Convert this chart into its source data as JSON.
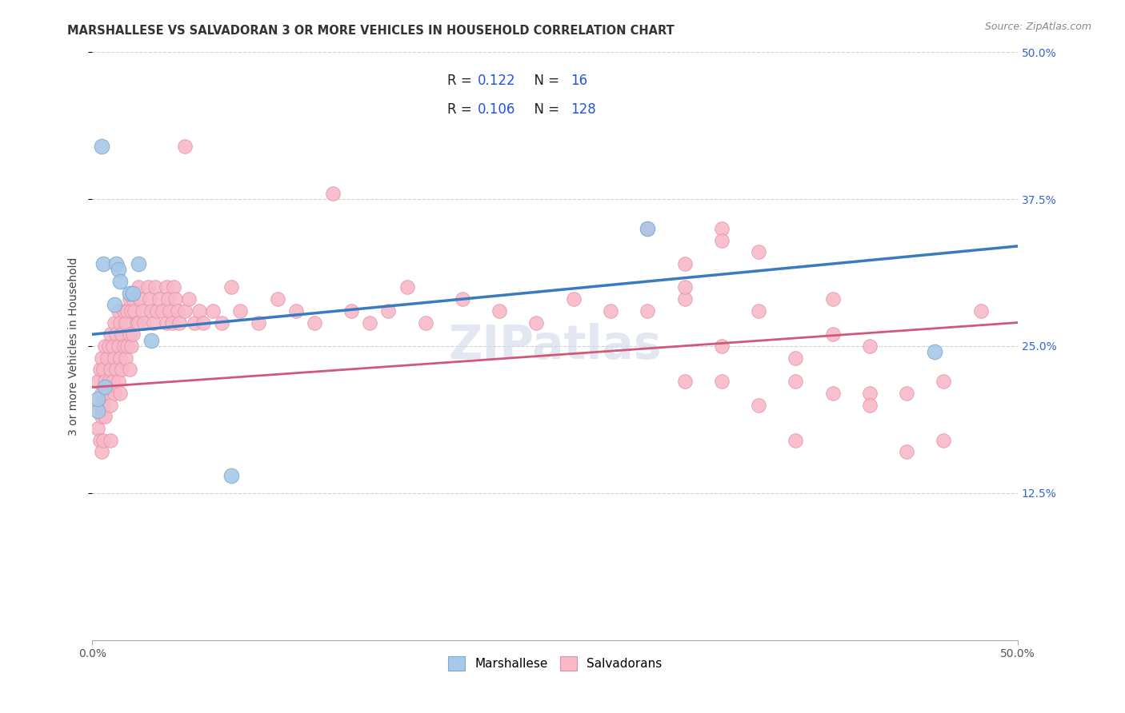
{
  "title": "MARSHALLESE VS SALVADORAN 3 OR MORE VEHICLES IN HOUSEHOLD CORRELATION CHART",
  "source": "Source: ZipAtlas.com",
  "ylabel": "3 or more Vehicles in Household",
  "xmin": 0.0,
  "xmax": 0.5,
  "ymin": 0.0,
  "ymax": 0.5,
  "marshallese_color": "#a8c8e8",
  "marshallese_edge": "#7aaacc",
  "salvadoran_color": "#f8b8c8",
  "salvadoran_edge": "#e090a8",
  "trend_marshallese_color": "#3a7abf",
  "trend_salvadoran_color": "#d05878",
  "watermark": "ZIPatlas",
  "watermark_color": "#d0d8e8",
  "background_color": "#ffffff",
  "grid_color": "#cccccc",
  "title_fontsize": 10.5,
  "axis_label_fontsize": 10,
  "tick_fontsize": 10,
  "ytick_vals": [
    0.125,
    0.25,
    0.375,
    0.5
  ],
  "ytick_labels": [
    "12.5%",
    "25.0%",
    "37.5%",
    "50.0%"
  ],
  "marshallese_x": [
    0.003,
    0.003,
    0.005,
    0.006,
    0.007,
    0.012,
    0.013,
    0.014,
    0.015,
    0.02,
    0.022,
    0.025,
    0.032,
    0.075,
    0.3,
    0.455
  ],
  "marshallese_y": [
    0.195,
    0.205,
    0.42,
    0.32,
    0.215,
    0.285,
    0.32,
    0.315,
    0.305,
    0.295,
    0.295,
    0.32,
    0.255,
    0.14,
    0.35,
    0.245
  ],
  "salvadoran_x": [
    0.003,
    0.003,
    0.004,
    0.004,
    0.004,
    0.005,
    0.005,
    0.005,
    0.005,
    0.006,
    0.006,
    0.006,
    0.007,
    0.007,
    0.007,
    0.008,
    0.008,
    0.009,
    0.009,
    0.01,
    0.01,
    0.01,
    0.01,
    0.011,
    0.011,
    0.012,
    0.012,
    0.012,
    0.013,
    0.013,
    0.014,
    0.014,
    0.014,
    0.015,
    0.015,
    0.015,
    0.016,
    0.016,
    0.017,
    0.017,
    0.018,
    0.018,
    0.019,
    0.019,
    0.02,
    0.02,
    0.02,
    0.021,
    0.021,
    0.022,
    0.022,
    0.023,
    0.024,
    0.025,
    0.025,
    0.026,
    0.027,
    0.028,
    0.03,
    0.031,
    0.032,
    0.033,
    0.034,
    0.035,
    0.036,
    0.038,
    0.04,
    0.04,
    0.041,
    0.042,
    0.043,
    0.044,
    0.045,
    0.046,
    0.047,
    0.05,
    0.05,
    0.052,
    0.055,
    0.058,
    0.06,
    0.065,
    0.07,
    0.075,
    0.08,
    0.09,
    0.1,
    0.11,
    0.12,
    0.13,
    0.14,
    0.15,
    0.16,
    0.17,
    0.18,
    0.2,
    0.22,
    0.24,
    0.26,
    0.28,
    0.3,
    0.32,
    0.34,
    0.36,
    0.38,
    0.4,
    0.42,
    0.44,
    0.46,
    0.48,
    0.3,
    0.32,
    0.34,
    0.36,
    0.38,
    0.4,
    0.42,
    0.44,
    0.46,
    0.3,
    0.32,
    0.34,
    0.32,
    0.34,
    0.36,
    0.38,
    0.4,
    0.42
  ],
  "salvadoran_y": [
    0.22,
    0.18,
    0.23,
    0.2,
    0.17,
    0.24,
    0.21,
    0.19,
    0.16,
    0.23,
    0.2,
    0.17,
    0.25,
    0.22,
    0.19,
    0.24,
    0.21,
    0.25,
    0.22,
    0.26,
    0.23,
    0.2,
    0.17,
    0.25,
    0.22,
    0.27,
    0.24,
    0.21,
    0.26,
    0.23,
    0.28,
    0.25,
    0.22,
    0.27,
    0.24,
    0.21,
    0.26,
    0.23,
    0.28,
    0.25,
    0.27,
    0.24,
    0.28,
    0.25,
    0.29,
    0.26,
    0.23,
    0.28,
    0.25,
    0.29,
    0.26,
    0.28,
    0.27,
    0.3,
    0.27,
    0.29,
    0.28,
    0.27,
    0.3,
    0.29,
    0.28,
    0.27,
    0.3,
    0.28,
    0.29,
    0.28,
    0.3,
    0.27,
    0.29,
    0.28,
    0.27,
    0.3,
    0.29,
    0.28,
    0.27,
    0.28,
    0.42,
    0.29,
    0.27,
    0.28,
    0.27,
    0.28,
    0.27,
    0.3,
    0.28,
    0.27,
    0.29,
    0.28,
    0.27,
    0.38,
    0.28,
    0.27,
    0.28,
    0.3,
    0.27,
    0.29,
    0.28,
    0.27,
    0.29,
    0.28,
    0.28,
    0.29,
    0.22,
    0.28,
    0.24,
    0.29,
    0.25,
    0.21,
    0.22,
    0.28,
    0.35,
    0.3,
    0.25,
    0.2,
    0.17,
    0.26,
    0.21,
    0.16,
    0.17,
    0.35,
    0.22,
    0.35,
    0.32,
    0.34,
    0.33,
    0.22,
    0.21,
    0.2
  ],
  "trend_marsh_x0": 0.0,
  "trend_marsh_x1": 0.5,
  "trend_marsh_y0": 0.26,
  "trend_marsh_y1": 0.335,
  "trend_sal_x0": 0.0,
  "trend_sal_x1": 0.5,
  "trend_sal_y0": 0.215,
  "trend_sal_y1": 0.27
}
